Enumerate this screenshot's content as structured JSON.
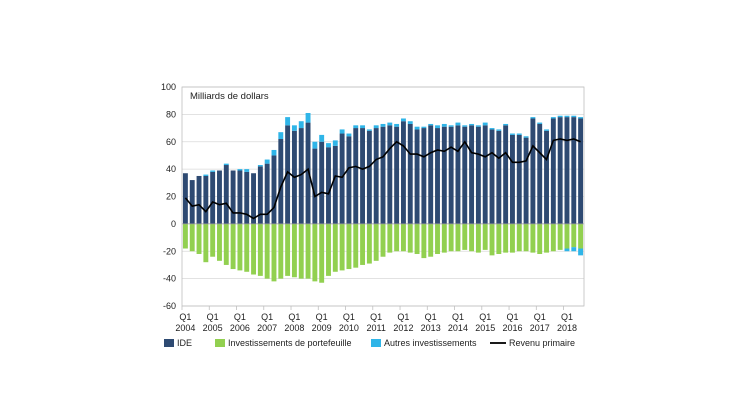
{
  "chart_data": {
    "type": "bar",
    "unit_label": "Milliards de dollars",
    "ylim": [
      -60,
      100
    ],
    "yticks": [
      -60,
      -40,
      -20,
      0,
      20,
      40,
      60,
      80,
      100
    ],
    "gridlines": true,
    "legend_position": "bottom",
    "quarters": 59,
    "year_ticks": [
      {
        "q": "Q1",
        "year": "2004"
      },
      {
        "q": "Q1",
        "year": "2005"
      },
      {
        "q": "Q1",
        "year": "2006"
      },
      {
        "q": "Q1",
        "year": "2007"
      },
      {
        "q": "Q1",
        "year": "2008"
      },
      {
        "q": "Q1",
        "year": "2009"
      },
      {
        "q": "Q1",
        "year": "2010"
      },
      {
        "q": "Q1",
        "year": "2011"
      },
      {
        "q": "Q1",
        "year": "2012"
      },
      {
        "q": "Q1",
        "year": "2013"
      },
      {
        "q": "Q1",
        "year": "2014"
      },
      {
        "q": "Q1",
        "year": "2015"
      },
      {
        "q": "Q1",
        "year": "2016"
      },
      {
        "q": "Q1",
        "year": "2017"
      },
      {
        "q": "Q1",
        "year": "2018"
      }
    ],
    "series": [
      {
        "name": "IDE",
        "type": "bar",
        "color": "#2E4A72",
        "values": [
          37,
          32,
          35,
          35,
          38,
          39,
          43,
          39,
          39,
          38,
          37,
          42,
          44,
          50,
          62,
          72,
          68,
          70,
          74,
          55,
          60,
          56,
          57,
          66,
          64,
          70,
          70,
          68,
          70,
          71,
          72,
          71,
          75,
          73,
          69,
          70,
          72,
          70,
          71,
          71,
          72,
          71,
          72,
          71,
          72,
          69,
          68,
          72,
          65,
          65,
          63,
          77,
          73,
          68,
          77,
          78,
          78,
          78,
          77
        ]
      },
      {
        "name": "Investissements de portefeuille",
        "type": "bar",
        "color": "#92D050",
        "values": [
          -18,
          -20,
          -22,
          -28,
          -24,
          -27,
          -30,
          -33,
          -34,
          -35,
          -37,
          -38,
          -40,
          -42,
          -40,
          -38,
          -39,
          -40,
          -40,
          -42,
          -43,
          -38,
          -35,
          -34,
          -33,
          -32,
          -30,
          -29,
          -27,
          -24,
          -21,
          -20,
          -20,
          -21,
          -22,
          -25,
          -24,
          -22,
          -21,
          -20,
          -20,
          -19,
          -20,
          -21,
          -19,
          -23,
          -22,
          -21,
          -21,
          -20,
          -20,
          -21,
          -22,
          -21,
          -20,
          -19,
          -18,
          -17,
          -18
        ]
      },
      {
        "name": "Autres investissements",
        "type": "bar",
        "color": "#2FB5E8",
        "values": [
          0,
          0,
          0,
          1,
          1,
          0,
          1,
          0,
          1,
          2,
          0,
          1,
          3,
          4,
          5,
          6,
          4,
          5,
          7,
          5,
          5,
          3,
          4,
          3,
          2,
          2,
          2,
          1,
          2,
          2,
          2,
          2,
          2,
          2,
          2,
          1,
          1,
          2,
          2,
          1,
          2,
          1,
          1,
          1,
          2,
          1,
          1,
          1,
          1,
          1,
          1,
          1,
          1,
          1,
          1,
          1,
          1,
          1,
          1
        ],
        "negative_values": [
          0,
          0,
          0,
          0,
          0,
          0,
          0,
          0,
          0,
          0,
          0,
          0,
          0,
          0,
          0,
          0,
          0,
          0,
          0,
          0,
          0,
          0,
          0,
          0,
          0,
          0,
          0,
          0,
          0,
          0,
          0,
          0,
          0,
          0,
          0,
          0,
          0,
          0,
          0,
          0,
          0,
          0,
          0,
          0,
          0,
          0,
          0,
          0,
          0,
          0,
          0,
          0,
          0,
          0,
          0,
          0,
          -2,
          -3,
          -5
        ]
      },
      {
        "name": "Revenu primaire",
        "type": "line",
        "color": "#000000",
        "values": [
          19,
          13,
          14,
          9,
          16,
          14,
          15,
          8,
          8,
          7,
          4,
          7,
          7,
          12,
          27,
          38,
          34,
          36,
          40,
          20,
          23,
          22,
          35,
          34,
          41,
          42,
          40,
          42,
          47,
          49,
          55,
          60,
          57,
          51,
          51,
          49,
          52,
          54,
          53,
          56,
          53,
          60,
          52,
          51,
          49,
          52,
          48,
          52,
          45,
          45,
          46,
          57,
          52,
          47,
          61,
          62,
          61,
          62,
          60
        ]
      }
    ]
  }
}
